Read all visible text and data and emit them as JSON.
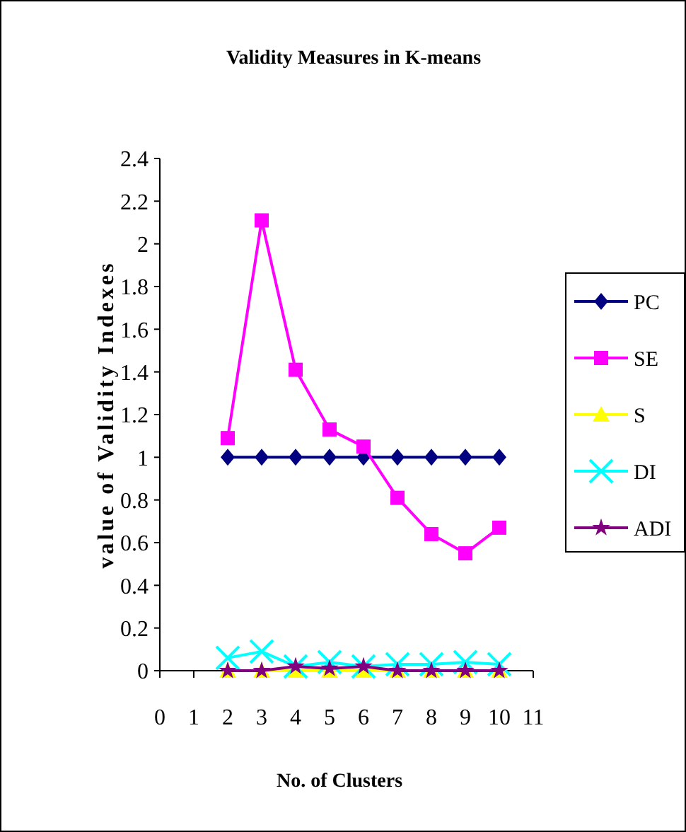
{
  "chart_data": {
    "type": "line",
    "title": "Validity Measures in K-means",
    "xlabel": "No. of Clusters",
    "ylabel": "value of Validity Indexes",
    "x": [
      2,
      3,
      4,
      5,
      6,
      7,
      8,
      9,
      10
    ],
    "series": [
      {
        "name": "PC",
        "color": "#000080",
        "marker": "diamond",
        "values": [
          1,
          1,
          1,
          1,
          1,
          1,
          1,
          1,
          1
        ]
      },
      {
        "name": "SE",
        "color": "#ff00ff",
        "marker": "square",
        "values": [
          1.09,
          2.11,
          1.41,
          1.13,
          1.05,
          0.81,
          0.64,
          0.55,
          0.67
        ]
      },
      {
        "name": "S",
        "color": "#ffff00",
        "marker": "triangle",
        "values": [
          0,
          0,
          0,
          0,
          0,
          0,
          0,
          0,
          0
        ]
      },
      {
        "name": "DI",
        "color": "#00ffff",
        "marker": "cross",
        "values": [
          0.06,
          0.09,
          0.02,
          0.04,
          0.02,
          0.03,
          0.03,
          0.04,
          0.03
        ]
      },
      {
        "name": "ADI",
        "color": "#800080",
        "marker": "star",
        "values": [
          0,
          0,
          0.02,
          0.01,
          0.02,
          0,
          0,
          0,
          0
        ]
      }
    ],
    "xlim": [
      0,
      11
    ],
    "xticks": [
      0,
      1,
      2,
      3,
      4,
      5,
      6,
      7,
      8,
      9,
      10,
      11
    ],
    "ylim": [
      0,
      2.4
    ],
    "yticks": [
      0,
      0.2,
      0.4,
      0.6,
      0.8,
      1,
      1.2,
      1.4,
      1.6,
      1.8,
      2,
      2.2,
      2.4
    ],
    "grid": false,
    "legend": "right"
  }
}
